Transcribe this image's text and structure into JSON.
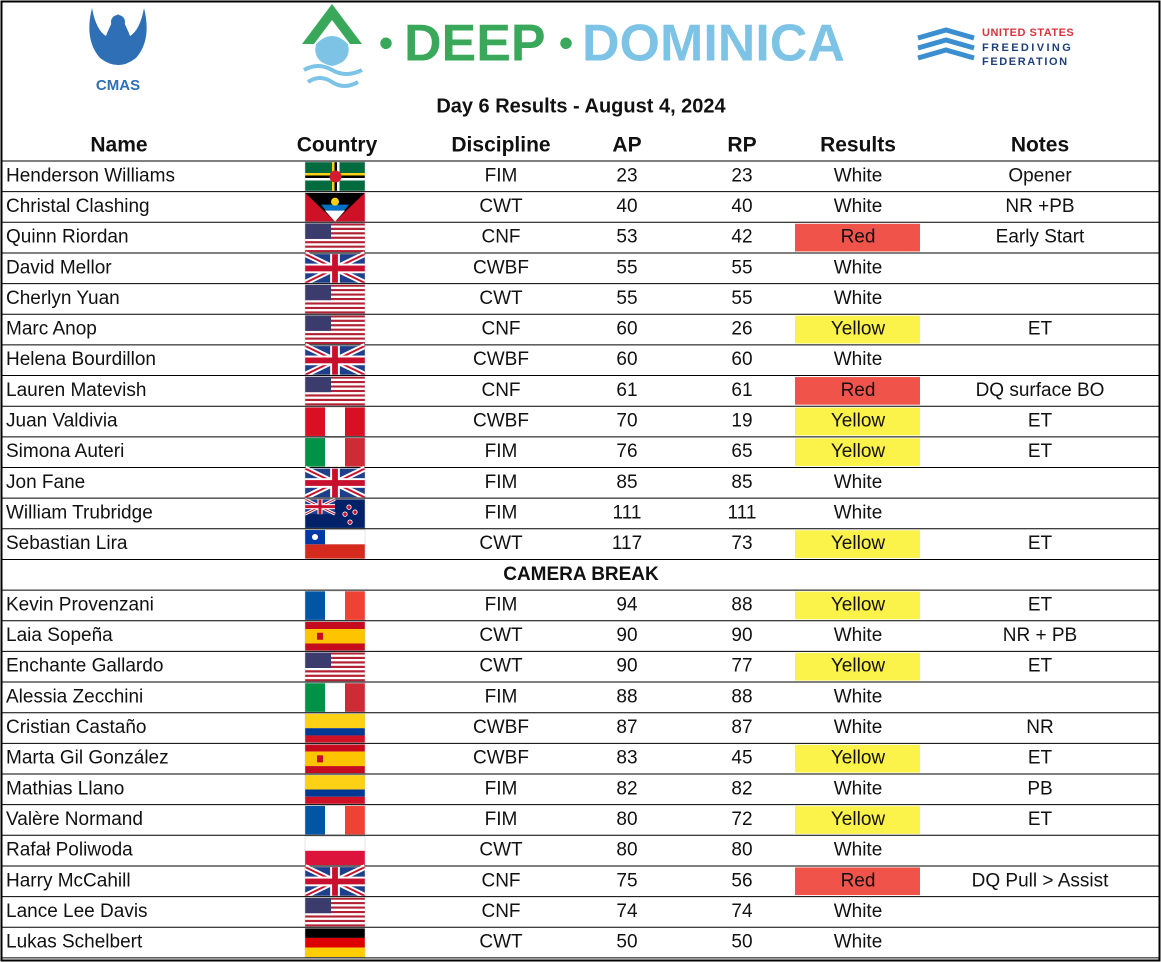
{
  "header": {
    "cmas": "CMAS",
    "event_dot_1": "•",
    "event_word_1": "DEEP",
    "event_dot_2": "•",
    "event_word_2": "DOMINICA",
    "federation": [
      "UNITED STATES",
      "FREEDIVING",
      "FEDERATION"
    ]
  },
  "title": "Day 6 Results - August 4, 2024",
  "table": {
    "columns": [
      "Name",
      "Country",
      "Discipline",
      "AP",
      "RP",
      "Results",
      "Notes"
    ],
    "sections": [
      {
        "rows": [
          {
            "name": "Henderson Williams",
            "discipline": "FIM",
            "ap": 23,
            "rp": 23,
            "result": "White",
            "notes": "Opener"
          },
          {
            "name": "Christal Clashing",
            "discipline": "CWT",
            "ap": 40,
            "rp": 40,
            "result": "White",
            "notes": "NR +PB"
          },
          {
            "name": "Quinn Riordan",
            "discipline": "CNF",
            "ap": 53,
            "rp": 42,
            "result": "Red",
            "notes": "Early Start"
          },
          {
            "name": "David Mellor",
            "discipline": "CWBF",
            "ap": 55,
            "rp": 55,
            "result": "White"
          },
          {
            "name": "Cherlyn Yuan",
            "discipline": "CWT",
            "ap": 55,
            "rp": 55,
            "result": "White"
          },
          {
            "name": "Marc Anop",
            "discipline": "CNF",
            "ap": 60,
            "rp": 26,
            "result": "Yellow",
            "notes": "ET"
          },
          {
            "name": "Helena Bourdillon",
            "discipline": "CWBF",
            "ap": 60,
            "rp": 60,
            "result": "White"
          },
          {
            "name": "Lauren Matevish",
            "discipline": "CNF",
            "ap": 61,
            "rp": 61,
            "result": "Red",
            "notes": "DQ surface BO"
          },
          {
            "name": "Juan Valdivia",
            "discipline": "CWBF",
            "ap": 70,
            "rp": 19,
            "result": "Yellow",
            "notes": "ET"
          },
          {
            "name": "Simona Auteri",
            "discipline": "FIM",
            "ap": 76,
            "rp": 65,
            "result": "Yellow",
            "notes": "ET"
          },
          {
            "name": "Jon Fane",
            "discipline": "FIM",
            "ap": 85,
            "rp": 85,
            "result": "White"
          },
          {
            "name": "William Trubridge",
            "discipline": "FIM",
            "ap": 111,
            "rp": 111,
            "result": "White"
          },
          {
            "name": "Sebastian Lira",
            "discipline": "CWT",
            "ap": 117,
            "rp": 73,
            "result": "Yellow",
            "notes": "ET"
          }
        ]
      },
      {
        "label": "CAMERA BREAK",
        "rows": [
          {
            "name": "Kevin Provenzani",
            "discipline": "FIM",
            "ap": 94,
            "rp": 88,
            "result": "Yellow",
            "notes": "ET"
          },
          {
            "name": "Laia Sopeña",
            "discipline": "CWT",
            "ap": 90,
            "rp": 90,
            "result": "White",
            "notes": "NR + PB"
          },
          {
            "name": "Enchante Gallardo",
            "discipline": "CWT",
            "ap": 90,
            "rp": 77,
            "result": "Yellow",
            "notes": "ET"
          },
          {
            "name": "Alessia Zecchini",
            "discipline": "FIM",
            "ap": 88,
            "rp": 88,
            "result": "White"
          },
          {
            "name": "Cristian Castaño",
            "discipline": "CWBF",
            "ap": 87,
            "rp": 87,
            "result": "White",
            "notes": "NR"
          },
          {
            "name": "Marta Gil González",
            "discipline": "CWBF",
            "ap": 83,
            "rp": 45,
            "result": "Yellow",
            "notes": "ET"
          },
          {
            "name": "Mathias Llano",
            "discipline": "FIM",
            "ap": 82,
            "rp": 82,
            "result": "White",
            "notes": "PB"
          },
          {
            "name": "Valère Normand",
            "discipline": "FIM",
            "ap": 80,
            "rp": 72,
            "result": "Yellow",
            "notes": "ET"
          },
          {
            "name": "Rafał Poliwoda",
            "discipline": "CWT",
            "ap": 80,
            "rp": 80,
            "result": "White"
          },
          {
            "name": "Harry McCahill",
            "discipline": "CNF",
            "ap": 75,
            "rp": 56,
            "result": "Red",
            "notes": "DQ Pull > Assist"
          },
          {
            "name": "Lance Lee Davis",
            "discipline": "CNF",
            "ap": 74,
            "rp": 74,
            "result": "White"
          },
          {
            "name": "Lukas Schelbert",
            "discipline": "CWT",
            "ap": 50,
            "rp": 50,
            "result": "White"
          }
        ]
      }
    ]
  }
}
